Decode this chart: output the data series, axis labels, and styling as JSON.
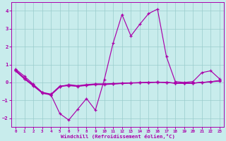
{
  "xlabel": "Windchill (Refroidissement éolien,°C)",
  "x": [
    0,
    1,
    2,
    3,
    4,
    5,
    6,
    7,
    8,
    9,
    10,
    11,
    12,
    13,
    14,
    15,
    16,
    17,
    18,
    19,
    20,
    21,
    22,
    23
  ],
  "line1": [
    0.75,
    0.35,
    -0.1,
    -0.55,
    -0.7,
    -1.75,
    -2.1,
    -1.5,
    -0.9,
    -1.55,
    0.15,
    2.2,
    3.8,
    2.6,
    3.25,
    3.85,
    4.1,
    1.45,
    0.05,
    0.0,
    0.05,
    0.55,
    0.65,
    0.2
  ],
  "line2": [
    0.65,
    0.2,
    -0.15,
    -0.55,
    -0.65,
    -0.2,
    -0.15,
    -0.2,
    -0.15,
    -0.1,
    -0.1,
    -0.08,
    -0.05,
    -0.03,
    -0.02,
    0.0,
    0.02,
    0.0,
    -0.04,
    -0.05,
    -0.04,
    0.0,
    0.04,
    0.1
  ],
  "line3": [
    0.65,
    0.2,
    -0.2,
    -0.58,
    -0.68,
    -0.22,
    -0.18,
    -0.22,
    -0.17,
    -0.12,
    -0.12,
    -0.09,
    -0.06,
    -0.03,
    -0.02,
    0.0,
    0.02,
    0.0,
    -0.04,
    -0.05,
    -0.04,
    0.0,
    0.04,
    0.1
  ],
  "line4": [
    0.7,
    0.25,
    -0.15,
    -0.6,
    -0.7,
    -0.25,
    -0.12,
    -0.18,
    -0.12,
    -0.08,
    -0.08,
    -0.06,
    -0.04,
    -0.02,
    -0.01,
    0.0,
    0.01,
    0.0,
    -0.03,
    -0.04,
    -0.03,
    0.0,
    0.03,
    0.08
  ],
  "line_color": "#aa00aa",
  "bg_color": "#c8ecec",
  "grid_color": "#99cccc",
  "ylim": [
    -2.5,
    4.5
  ],
  "xlim": [
    -0.5,
    23.5
  ],
  "yticks": [
    -2,
    -1,
    0,
    1,
    2,
    3,
    4
  ],
  "xticks": [
    0,
    1,
    2,
    3,
    4,
    5,
    6,
    7,
    8,
    9,
    10,
    11,
    12,
    13,
    14,
    15,
    16,
    17,
    18,
    19,
    20,
    21,
    22,
    23
  ]
}
